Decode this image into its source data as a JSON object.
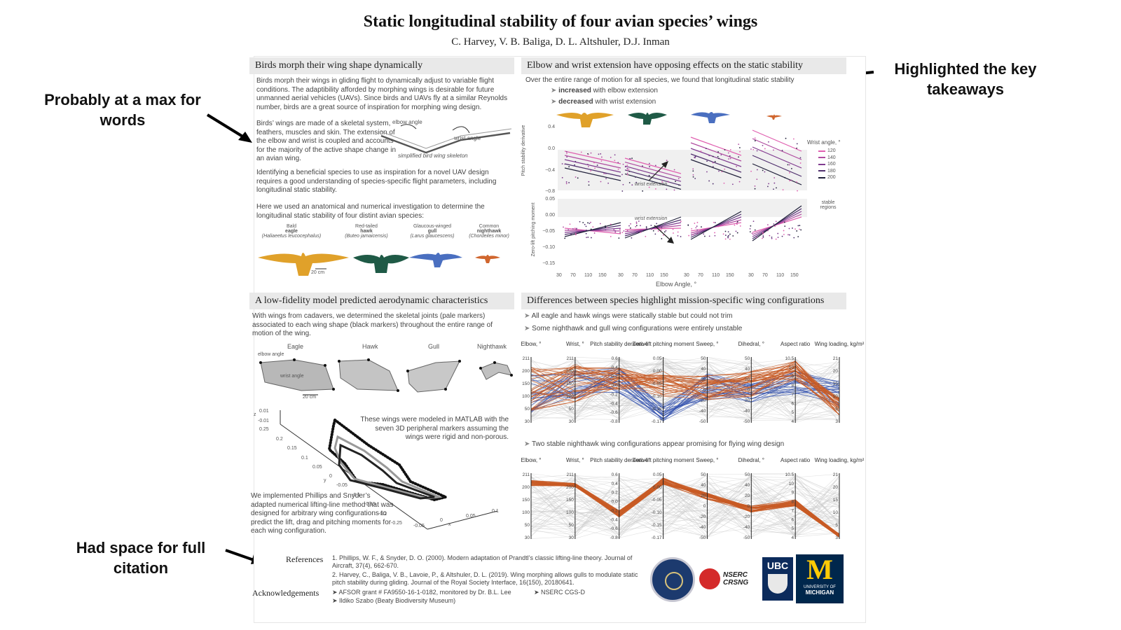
{
  "header": {
    "title": "Static longitudinal stability of four avian species’ wings",
    "authors": "C. Harvey, V. B. Baliga, D. L. Altshuler, D.J. Inman"
  },
  "annotations": {
    "left_top": "Probably at a max for words",
    "right_top": "Highlighted the key takeaways",
    "left_bottom": "Had space for full citation"
  },
  "section1": {
    "title": "Birds morph their wing shape dynamically",
    "para1": "Birds morph their wings in gliding flight to dynamically adjust to variable flight conditions. The adaptibility afforded by morphing wings is desirable for future unmanned aerial vehicles (UAVs). Since birds and UAVs fly at a similar Reynolds number, birds are a great source of inspiration for morphing wing design.",
    "para2": "Birds’ wings are made of a skeletal system, feathers, muscles and skin. The extension of the elbow and wrist is coupled and accounts for the majority of the active shape change in an avian wing.",
    "skeleton_caption": "simplified bird wing skeleton",
    "elbow_label": "elbow angle",
    "wrist_label": "wrist angle",
    "para3": "Identifying a beneficial species to use as inspiration for a novel UAV design requires a good understanding of species-specific flight parameters, including longitudinal static stability.",
    "para4": "Here we used an anatomical and numerical investigation to determine the longitudinal static stability of four distint avian species:",
    "species": [
      {
        "pre": "Bald",
        "name": "eagle",
        "latin": "(Haliaeetus leucocephalus)",
        "color": "#e0a12a"
      },
      {
        "pre": "Red-tailed",
        "name": "hawk",
        "latin": "(Buteo jamaicensis)",
        "color": "#1f5a46"
      },
      {
        "pre": "Glaucous-winged",
        "name": "gull",
        "latin": "(Larus glaucescens)",
        "color": "#4a6fc0"
      },
      {
        "pre": "Common",
        "name": "nighthawk",
        "latin": "(Chordeiles minor)",
        "color": "#d0662e"
      }
    ],
    "scale": "20 cm"
  },
  "section2": {
    "title": "Elbow and wrist extension have opposing effects on the static stability",
    "intro": "Over the entire range of motion for all species, we found that longitudinal static stability",
    "bullet1_bold": "increased",
    "bullet1_rest": " with elbow extension",
    "bullet2_bold": "decreased",
    "bullet2_rest": " with wrist extension",
    "ylabel_top": "Pitch stability derivative",
    "ylabel_bottom": "Zero-lift pitching moment",
    "xlabel": "Elbow Angle, °",
    "wrist_extension": "wrist extension",
    "legend_title": "Wrist angle, °",
    "legend_items": [
      "120",
      "140",
      "160",
      "180",
      "200"
    ],
    "legend_colors": [
      "#e060b0",
      "#b04ca0",
      "#803c90",
      "#50306e",
      "#20203a"
    ],
    "stable_regions": "stable regions",
    "top_ticks": [
      "0.4",
      "0.0",
      "−0.4",
      "−0.8"
    ],
    "bottom_ticks": [
      "0.05",
      "0.00",
      "−0.05",
      "−0.10",
      "−0.15"
    ],
    "x_ticks": [
      "30",
      "70",
      "110",
      "150"
    ]
  },
  "section3": {
    "title": "A low-fidelity model predicted aerodynamic characteristics",
    "intro": "With wings from cadavers, we determined the skeletal joints (pale markers) associated to each wing shape (black markers) throughout the entire range of motion of the wing.",
    "species_labels": [
      "Eagle",
      "Hawk",
      "Gull",
      "Nighthawk"
    ],
    "elbow_angle": "elbow angle",
    "wrist_angle": "wrist angle",
    "scale": "20 cm",
    "matlab_text": "These wings were modeled in MATLAB with the seven 3D peripheral markers assuming the wings were rigid and non-porous.",
    "method_text": "We implemented Phillips and Snyder’s adapted numerical lifting-line method that was designed for arbitrary wing configurations to predict the lift, drag and pitching moments for each wing configuration.",
    "axis_z": "z",
    "axis_y": "y",
    "axis_x": "x",
    "z_ticks": [
      "0.01",
      "-0.01"
    ],
    "y_ticks": [
      "0.25",
      "0.2",
      "0.15",
      "0.1",
      "0.05",
      "0",
      "-0.05",
      "-0.1",
      "-0.15",
      "-0.2",
      "-0.25"
    ],
    "x_ticks": [
      "-0.05",
      "0",
      "0.05",
      "0.1"
    ]
  },
  "section4": {
    "title": "Differences between species highlight mission-specific wing configurations",
    "bullet1": "All eagle and hawk wings were statically stable but could not trim",
    "bullet2": "Some nighthawk and gull wing configurations were entirely unstable",
    "bullet3": "Two stable nighthawk wing configurations appear promising for flying wing design",
    "axes": [
      {
        "label": "Elbow, °",
        "ticks": [
          "211",
          "200",
          "150",
          "100",
          "50",
          "30"
        ]
      },
      {
        "label": "Wrist, °",
        "ticks": [
          "211",
          "200",
          "150",
          "100",
          "50",
          "30"
        ]
      },
      {
        "label": "Pitch stability derivative",
        "ticks": [
          "0.6",
          "0.4",
          "0.2",
          "0.0",
          "-0.2",
          "-0.4",
          "-0.6",
          "-0.8"
        ]
      },
      {
        "label": "Zero-lift pitching moment",
        "ticks": [
          "0.05",
          "0.00",
          "-0.05",
          "-0.10",
          "-0.15",
          "-0.17"
        ]
      },
      {
        "label": "Sweep, °",
        "ticks": [
          "50",
          "40",
          "20",
          "0",
          "-20",
          "-40",
          "-50"
        ]
      },
      {
        "label": "Dihedral, °",
        "ticks": [
          "50",
          "40",
          "20",
          "0",
          "-20",
          "-40",
          "-50"
        ]
      },
      {
        "label": "Aspect ratio",
        "ticks": [
          "10.5",
          "10",
          "9",
          "8",
          "7",
          "6",
          "5",
          "4"
        ]
      },
      {
        "label": "Wing loading, kg/m²",
        "ticks": [
          "21",
          "20",
          "15",
          "10",
          "5",
          "3"
        ]
      }
    ],
    "colors": {
      "gray": "#c8c8c8",
      "orange": "#c85a25",
      "blue": "#3a57b0"
    }
  },
  "references": {
    "label": "References",
    "items": [
      "1. Phillips, W. F., & Snyder, D. O. (2000). Modern adaptation of Prandtl’s classic lifting-line theory. Journal of Aircraft, 37(4), 662-670.",
      "2. Harvey, C., Baliga, V. B., Lavoie, P., & Altshuler, D. L. (2019). Wing morphing allows gulls to modulate static pitch stability during gliding. Journal of the Royal Society Interface, 16(150), 20180641."
    ]
  },
  "acknowledgements": {
    "label": "Acknowledgements",
    "item1": "➤ AFSOR grant # FA9550-16-1-0182, monitored by Dr. B.L. Lee",
    "item2": "➤ NSERC CGS-D",
    "item3": "➤ Ildiko Szabo (Beaty Biodiversity Museum)"
  },
  "logos": {
    "nserc1": "NSERC",
    "nserc2": "CRSNG",
    "ubc": "UBC",
    "michigan_letter": "M",
    "michigan1": "UNIVERSITY OF",
    "michigan2": "MICHIGAN"
  }
}
